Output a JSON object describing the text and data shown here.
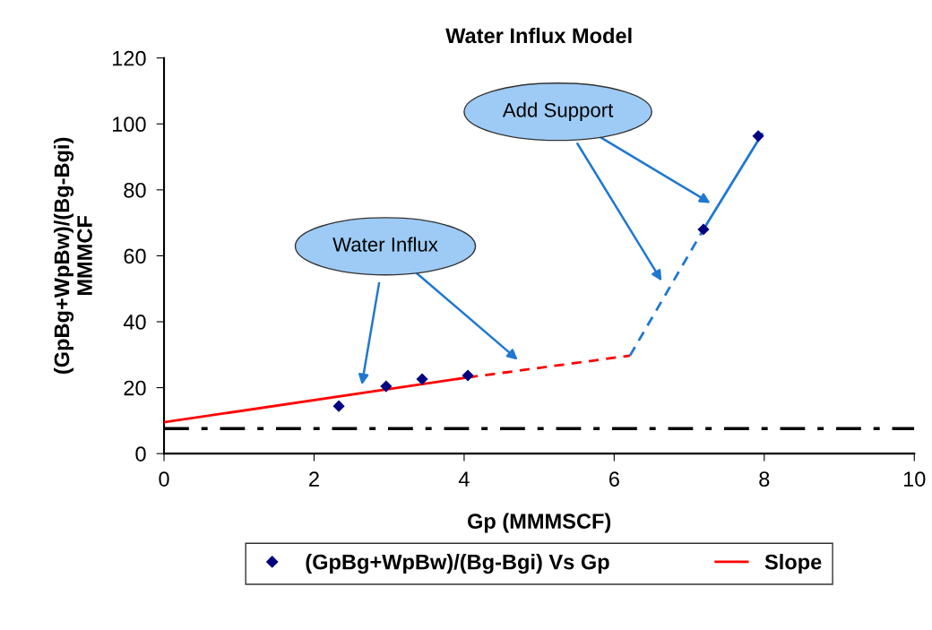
{
  "chart_data": {
    "type": "scatter",
    "title": "Water Influx Model",
    "xlabel": "Gp (MMMSCF)",
    "ylabel": "(GpBg+WpBw)/(Bg-Bgi)\nMMMCF",
    "series": [
      {
        "name": "(GpBg+WpBw)/(Bg-Bgi) Vs Gp",
        "color": "#000080",
        "marker": "diamond",
        "x": [
          2.33,
          2.96,
          3.44,
          4.05,
          7.19,
          7.92
        ],
        "values": [
          14.4,
          20.4,
          22.6,
          23.7,
          68,
          96.3
        ]
      },
      {
        "name": "Slope",
        "type": "line",
        "color": "#ff0000",
        "line_style": "solid",
        "x": [
          0,
          4.05
        ],
        "values": [
          9.5,
          23.1
        ]
      },
      {
        "type": "line",
        "color": "#ff0000",
        "line_style": "dashed",
        "x": [
          4.05,
          6.21
        ],
        "values": [
          23.1,
          29.7
        ]
      },
      {
        "type": "line",
        "color": "#1f78d1",
        "line_style": "dashed",
        "x": [
          6.21,
          7.19
        ],
        "values": [
          29.7,
          68
        ]
      },
      {
        "type": "line",
        "color": "#1f78d1",
        "line_style": "solid",
        "x": [
          7.19,
          7.97
        ],
        "values": [
          68,
          96.9
        ]
      }
    ],
    "ref_lines": [
      {
        "axis": "y",
        "value": 7.6,
        "color": "#000000",
        "line_style": "dashdot"
      }
    ],
    "annotations": [
      "Water Influx",
      "Add Support"
    ],
    "xlim": [
      0,
      10
    ],
    "xticks": [
      0,
      2,
      4,
      6,
      8,
      10
    ],
    "ylim": [
      0,
      120
    ],
    "yticks": [
      0,
      20,
      40,
      60,
      80,
      100,
      120
    ],
    "grid": false,
    "legend": "bottom"
  }
}
